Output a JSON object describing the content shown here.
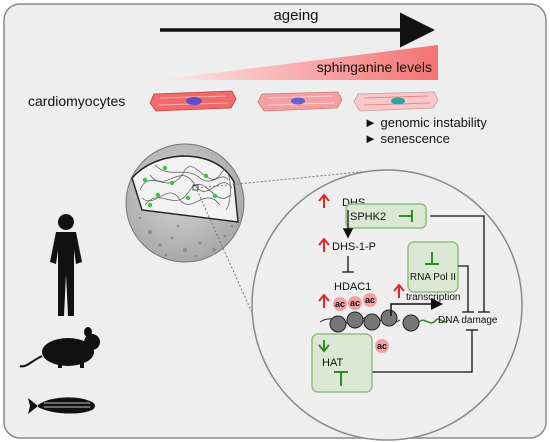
{
  "ageing": "ageing",
  "sphinganine": "sphinganine levels",
  "cardiomyocytes": "cardiomyocytes",
  "outcomes": [
    "genomic instability",
    "senescence"
  ],
  "pathway": {
    "dhs": "DHS",
    "sphk2": "SPHK2",
    "dhs1p": "DHS-1-P",
    "hdac1": "HDAC1",
    "transcription": "transcription",
    "rnapol2": "RNA Pol II",
    "dna_damage": "DNA damage",
    "hat": "HAT",
    "ac": "ac"
  },
  "colors": {
    "panel_bg": "#eeeeee",
    "gradient_start": "#fde6e6",
    "gradient_end": "#f47a7a",
    "box_fill": "#dbe9d4",
    "box_stroke": "#8fbf7f",
    "red_arrow": "#e32626",
    "green_arrow": "#2e8b2e",
    "ac_burst": "#f4a0a0"
  }
}
